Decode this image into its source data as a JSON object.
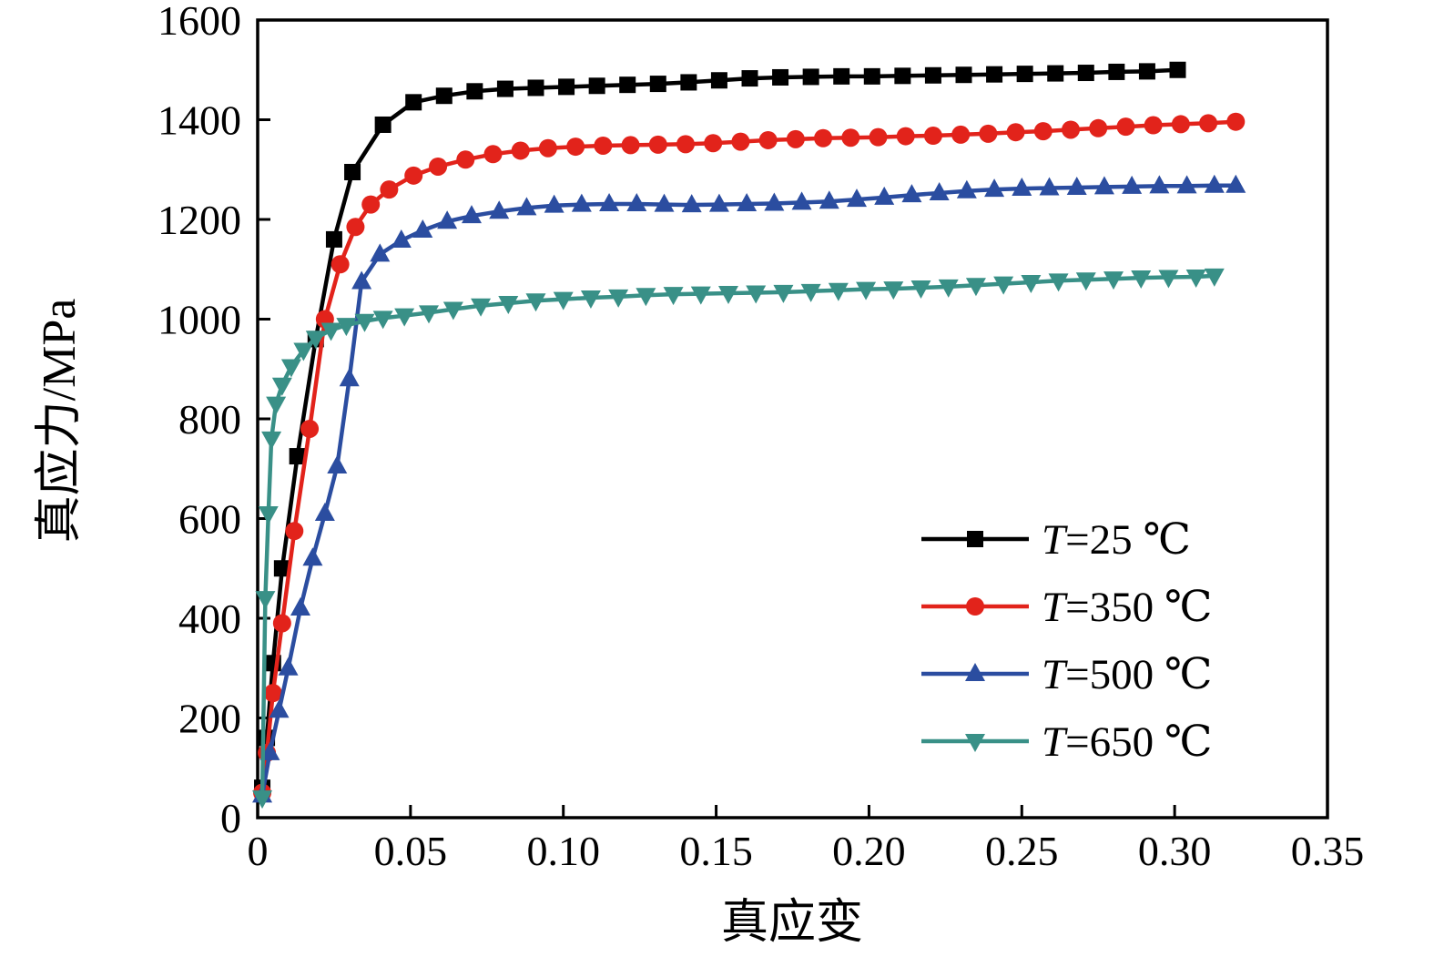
{
  "chart_data": {
    "type": "line",
    "title": "",
    "xlabel": "真应变",
    "ylabel": "真应力/MPa",
    "xlim": [
      0,
      0.35
    ],
    "ylim": [
      0,
      1600
    ],
    "grid": false,
    "legend_position": "inside-right-lower",
    "x_ticks": [
      0,
      0.05,
      0.1,
      0.15,
      0.2,
      0.25,
      0.3,
      0.35
    ],
    "x_tick_labels": [
      "0",
      "0.05",
      "0.10",
      "0.15",
      "0.20",
      "0.25",
      "0.30",
      "0.35"
    ],
    "y_ticks": [
      0,
      200,
      400,
      600,
      800,
      1000,
      1200,
      1400,
      1600
    ],
    "y_tick_labels": [
      "0",
      "200",
      "400",
      "600",
      "800",
      "1000",
      "1200",
      "1400",
      "1600"
    ],
    "series": [
      {
        "name": "T=25 ℃",
        "color": "#000000",
        "marker": "square",
        "points": [
          [
            0.0015,
            60
          ],
          [
            0.003,
            160
          ],
          [
            0.005,
            310
          ],
          [
            0.008,
            500
          ],
          [
            0.013,
            725
          ],
          [
            0.019,
            960
          ],
          [
            0.025,
            1160
          ],
          [
            0.031,
            1295
          ],
          [
            0.041,
            1390
          ],
          [
            0.051,
            1435
          ],
          [
            0.061,
            1448
          ],
          [
            0.071,
            1457
          ],
          [
            0.081,
            1462
          ],
          [
            0.091,
            1464
          ],
          [
            0.101,
            1466
          ],
          [
            0.111,
            1468
          ],
          [
            0.121,
            1470
          ],
          [
            0.131,
            1472
          ],
          [
            0.141,
            1475
          ],
          [
            0.151,
            1479
          ],
          [
            0.161,
            1483
          ],
          [
            0.171,
            1485
          ],
          [
            0.181,
            1486
          ],
          [
            0.191,
            1487
          ],
          [
            0.201,
            1487
          ],
          [
            0.211,
            1488
          ],
          [
            0.221,
            1489
          ],
          [
            0.231,
            1490
          ],
          [
            0.241,
            1491
          ],
          [
            0.251,
            1492
          ],
          [
            0.261,
            1493
          ],
          [
            0.271,
            1494
          ],
          [
            0.281,
            1496
          ],
          [
            0.291,
            1497
          ],
          [
            0.301,
            1500
          ]
        ]
      },
      {
        "name": "T=350 ℃",
        "color": "#e2231b",
        "marker": "circle",
        "points": [
          [
            0.0015,
            50
          ],
          [
            0.003,
            130
          ],
          [
            0.005,
            250
          ],
          [
            0.008,
            390
          ],
          [
            0.012,
            575
          ],
          [
            0.017,
            780
          ],
          [
            0.022,
            1000
          ],
          [
            0.027,
            1110
          ],
          [
            0.032,
            1185
          ],
          [
            0.037,
            1230
          ],
          [
            0.043,
            1260
          ],
          [
            0.051,
            1288
          ],
          [
            0.059,
            1306
          ],
          [
            0.068,
            1320
          ],
          [
            0.077,
            1331
          ],
          [
            0.086,
            1338
          ],
          [
            0.095,
            1343
          ],
          [
            0.104,
            1346
          ],
          [
            0.113,
            1348
          ],
          [
            0.122,
            1349
          ],
          [
            0.131,
            1350
          ],
          [
            0.14,
            1351
          ],
          [
            0.149,
            1353
          ],
          [
            0.158,
            1356
          ],
          [
            0.167,
            1359
          ],
          [
            0.176,
            1361
          ],
          [
            0.185,
            1363
          ],
          [
            0.194,
            1364
          ],
          [
            0.203,
            1365
          ],
          [
            0.212,
            1367
          ],
          [
            0.221,
            1368
          ],
          [
            0.23,
            1370
          ],
          [
            0.239,
            1372
          ],
          [
            0.248,
            1375
          ],
          [
            0.257,
            1377
          ],
          [
            0.266,
            1380
          ],
          [
            0.275,
            1383
          ],
          [
            0.284,
            1386
          ],
          [
            0.293,
            1389
          ],
          [
            0.302,
            1391
          ],
          [
            0.311,
            1393
          ],
          [
            0.32,
            1396
          ]
        ]
      },
      {
        "name": "T=500 ℃",
        "color": "#2b4da0",
        "marker": "triangle-up",
        "points": [
          [
            0.0015,
            45
          ],
          [
            0.004,
            130
          ],
          [
            0.007,
            215
          ],
          [
            0.01,
            300
          ],
          [
            0.014,
            420
          ],
          [
            0.018,
            520
          ],
          [
            0.022,
            610
          ],
          [
            0.026,
            705
          ],
          [
            0.03,
            880
          ],
          [
            0.034,
            1075
          ],
          [
            0.04,
            1130
          ],
          [
            0.047,
            1158
          ],
          [
            0.054,
            1178
          ],
          [
            0.062,
            1196
          ],
          [
            0.07,
            1207
          ],
          [
            0.079,
            1216
          ],
          [
            0.088,
            1223
          ],
          [
            0.097,
            1228
          ],
          [
            0.106,
            1230
          ],
          [
            0.115,
            1231
          ],
          [
            0.124,
            1231
          ],
          [
            0.133,
            1230
          ],
          [
            0.142,
            1229
          ],
          [
            0.151,
            1230
          ],
          [
            0.16,
            1231
          ],
          [
            0.169,
            1232
          ],
          [
            0.178,
            1234
          ],
          [
            0.187,
            1236
          ],
          [
            0.196,
            1240
          ],
          [
            0.205,
            1244
          ],
          [
            0.214,
            1249
          ],
          [
            0.223,
            1253
          ],
          [
            0.232,
            1257
          ],
          [
            0.241,
            1260
          ],
          [
            0.25,
            1262
          ],
          [
            0.259,
            1263
          ],
          [
            0.268,
            1264
          ],
          [
            0.277,
            1265
          ],
          [
            0.286,
            1266
          ],
          [
            0.295,
            1267
          ],
          [
            0.304,
            1267
          ],
          [
            0.313,
            1268
          ],
          [
            0.32,
            1268
          ]
        ]
      },
      {
        "name": "T=650 ℃",
        "color": "#399087",
        "marker": "triangle-down",
        "points": [
          [
            0.0015,
            40
          ],
          [
            0.0025,
            440
          ],
          [
            0.0035,
            610
          ],
          [
            0.0045,
            760
          ],
          [
            0.006,
            830
          ],
          [
            0.008,
            868
          ],
          [
            0.011,
            905
          ],
          [
            0.015,
            938
          ],
          [
            0.019,
            962
          ],
          [
            0.024,
            978
          ],
          [
            0.029,
            988
          ],
          [
            0.035,
            996
          ],
          [
            0.041,
            1002
          ],
          [
            0.048,
            1007
          ],
          [
            0.056,
            1013
          ],
          [
            0.064,
            1020
          ],
          [
            0.073,
            1027
          ],
          [
            0.082,
            1032
          ],
          [
            0.091,
            1037
          ],
          [
            0.1,
            1040
          ],
          [
            0.109,
            1043
          ],
          [
            0.118,
            1045
          ],
          [
            0.127,
            1048
          ],
          [
            0.136,
            1050
          ],
          [
            0.145,
            1051
          ],
          [
            0.154,
            1052
          ],
          [
            0.163,
            1053
          ],
          [
            0.172,
            1054
          ],
          [
            0.181,
            1056
          ],
          [
            0.19,
            1058
          ],
          [
            0.199,
            1060
          ],
          [
            0.208,
            1061
          ],
          [
            0.217,
            1063
          ],
          [
            0.226,
            1065
          ],
          [
            0.235,
            1068
          ],
          [
            0.244,
            1071
          ],
          [
            0.253,
            1074
          ],
          [
            0.262,
            1077
          ],
          [
            0.271,
            1079
          ],
          [
            0.28,
            1081
          ],
          [
            0.289,
            1083
          ],
          [
            0.298,
            1084
          ],
          [
            0.307,
            1085
          ],
          [
            0.313,
            1087
          ]
        ]
      }
    ]
  }
}
